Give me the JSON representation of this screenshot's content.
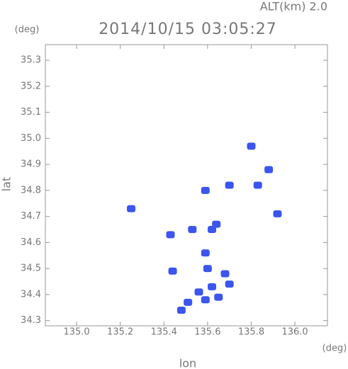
{
  "chart_data": {
    "type": "scatter",
    "title": "2014/10/15 03:05:27",
    "subtitle": "ALT(km) 2.0",
    "x_label": "lon",
    "y_label": "lat",
    "x_unit": "(deg)",
    "y_unit": "(deg)",
    "x": [
      135.25,
      135.8,
      135.88,
      135.92,
      135.83,
      135.53,
      135.62,
      135.43,
      135.59,
      135.6,
      135.68,
      135.62,
      135.7,
      135.56,
      135.51,
      135.59,
      135.48,
      135.65,
      135.44,
      135.7,
      135.59,
      135.64
    ],
    "y": [
      34.73,
      34.97,
      34.88,
      34.71,
      34.82,
      34.65,
      34.65,
      34.63,
      34.56,
      34.5,
      34.48,
      34.43,
      34.44,
      34.41,
      34.37,
      34.38,
      34.34,
      34.39,
      34.49,
      34.82,
      34.8,
      34.67
    ],
    "color": "#3b55ee",
    "xlim": [
      134.857,
      136.149
    ],
    "ylim": [
      34.28,
      35.36
    ],
    "xticks": [
      {
        "value": 135,
        "label": "135.0"
      },
      135.2,
      135.4,
      135.6,
      135.8,
      {
        "value": 136,
        "label": "136.0"
      }
    ],
    "yticks": [
      34.3,
      34.4,
      34.5,
      34.6,
      34.7,
      34.8,
      34.9,
      {
        "value": 35,
        "label": "35.0"
      },
      35.1,
      35.2,
      35.3
    ]
  }
}
